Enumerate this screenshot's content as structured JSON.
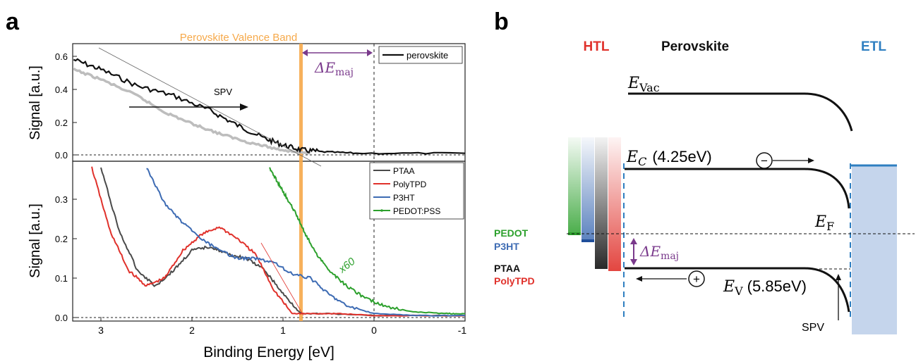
{
  "panel_a": {
    "letter": "a",
    "band_label": "Perovskite Valence Band",
    "delta_e": "ΔE",
    "delta_e_sub": "maj",
    "spv": "SPV",
    "x60": "x60",
    "xlabel": "Binding Energy [eV]",
    "ylabel_top": "Signal [a.u.]",
    "ylabel_bottom": "Signal [a.u.]",
    "top_yticks": [
      "0.0",
      "0.2",
      "0.4",
      "0.6"
    ],
    "bottom_yticks": [
      "0.0",
      "0.1",
      "0.2",
      "0.3"
    ],
    "xticks": [
      "3",
      "2",
      "1",
      "0",
      "-1"
    ],
    "top_legend": [
      "perovskite"
    ],
    "bottom_legend": [
      "PTAA",
      "PolyTPD",
      "P3HT",
      "PEDOT:PSS"
    ],
    "colors": {
      "perovskite": "#111111",
      "gray": "#bdbdbd",
      "PTAA": "#4a4a4a",
      "PolyTPD": "#e0312b",
      "P3HT": "#3d6bb3",
      "PEDOT:PSS": "#2ca02c",
      "band": "#f6a94a",
      "delta": "#7a3a8c"
    }
  },
  "panel_b": {
    "letter": "b",
    "htl": "HTL",
    "perovskite": "Perovskite",
    "etl": "ETL",
    "evac": "E",
    "evac_sub": "Vac",
    "ec": "E",
    "ec_sub": "C",
    "ec_val": "(4.25eV)",
    "ef": "E",
    "ef_sub": "F",
    "ev": "E",
    "ev_sub": "V",
    "ev_val": "(5.85eV)",
    "delta_e": "ΔE",
    "delta_e_sub": "maj",
    "spv": "SPV",
    "minus": "−",
    "plus": "+",
    "materials": [
      "PEDOT",
      "P3HT",
      "PTAA",
      "PolyTPD"
    ],
    "colors": {
      "htl": "#e0312b",
      "etl": "#2f7fc1",
      "PEDOT": "#2ca02c",
      "P3HT": "#3d6bb3",
      "PTAA": "#111111",
      "PolyTPD": "#e0312b",
      "delta": "#7a3a8c"
    }
  },
  "chart_data": [
    {
      "type": "line",
      "title": "",
      "xlabel": "Binding Energy [eV]",
      "ylabel": "Signal [a.u.]",
      "xlim": [
        3.35,
        -1.0
      ],
      "ylim": [
        0.0,
        0.65
      ],
      "series": [
        {
          "name": "perovskite",
          "x": [
            3.3,
            3.0,
            2.6,
            2.2,
            1.8,
            1.5,
            1.2,
            1.0,
            0.8,
            0.6,
            0.2,
            -1.0
          ],
          "y": [
            0.58,
            0.52,
            0.42,
            0.36,
            0.27,
            0.18,
            0.1,
            0.06,
            0.03,
            0.02,
            0.01,
            0.01
          ]
        },
        {
          "x": [
            3.3,
            3.0,
            2.6,
            2.3,
            2.0,
            1.7,
            1.4,
            1.1,
            0.9,
            0.7
          ],
          "y": [
            0.52,
            0.46,
            0.36,
            0.26,
            0.19,
            0.13,
            0.08,
            0.04,
            0.02,
            0.01
          ]
        }
      ]
    },
    {
      "type": "line",
      "title": "",
      "xlabel": "Binding Energy [eV]",
      "ylabel": "Signal [a.u.]",
      "xlim": [
        3.35,
        -1.0
      ],
      "ylim": [
        0.0,
        0.38
      ],
      "series": [
        {
          "name": "PTAA",
          "x": [
            3.0,
            2.8,
            2.6,
            2.4,
            2.2,
            2.0,
            1.8,
            1.6,
            1.4,
            1.2,
            1.0,
            0.8,
            0.5,
            0.0,
            -1.0
          ],
          "y": [
            0.38,
            0.22,
            0.12,
            0.08,
            0.12,
            0.17,
            0.18,
            0.16,
            0.15,
            0.12,
            0.06,
            0.01,
            0.01,
            0.005,
            0.005
          ]
        },
        {
          "name": "PolyTPD",
          "x": [
            3.1,
            2.9,
            2.7,
            2.5,
            2.3,
            2.1,
            1.9,
            1.7,
            1.5,
            1.3,
            1.1,
            0.9,
            0.7,
            0.4,
            0.0,
            -1.0
          ],
          "y": [
            0.38,
            0.22,
            0.12,
            0.08,
            0.1,
            0.17,
            0.21,
            0.23,
            0.2,
            0.16,
            0.07,
            0.01,
            0.01,
            0.01,
            0.005,
            0.005
          ]
        },
        {
          "name": "P3HT",
          "x": [
            2.5,
            2.3,
            2.1,
            1.9,
            1.7,
            1.5,
            1.3,
            1.1,
            0.9,
            0.7,
            0.5,
            0.3,
            0.0,
            -0.5,
            -1.0
          ],
          "y": [
            0.38,
            0.29,
            0.24,
            0.2,
            0.17,
            0.15,
            0.15,
            0.14,
            0.11,
            0.1,
            0.06,
            0.03,
            0.01,
            0.005,
            0.005
          ]
        },
        {
          "name": "PEDOT:PSS",
          "x": [
            1.15,
            1.05,
            0.95,
            0.85,
            0.75,
            0.6,
            0.45,
            0.3,
            0.1,
            -0.1,
            -0.4,
            -0.8,
            -1.0
          ],
          "y": [
            0.38,
            0.34,
            0.3,
            0.26,
            0.21,
            0.15,
            0.11,
            0.08,
            0.05,
            0.03,
            0.015,
            0.01,
            0.01
          ]
        }
      ]
    }
  ]
}
